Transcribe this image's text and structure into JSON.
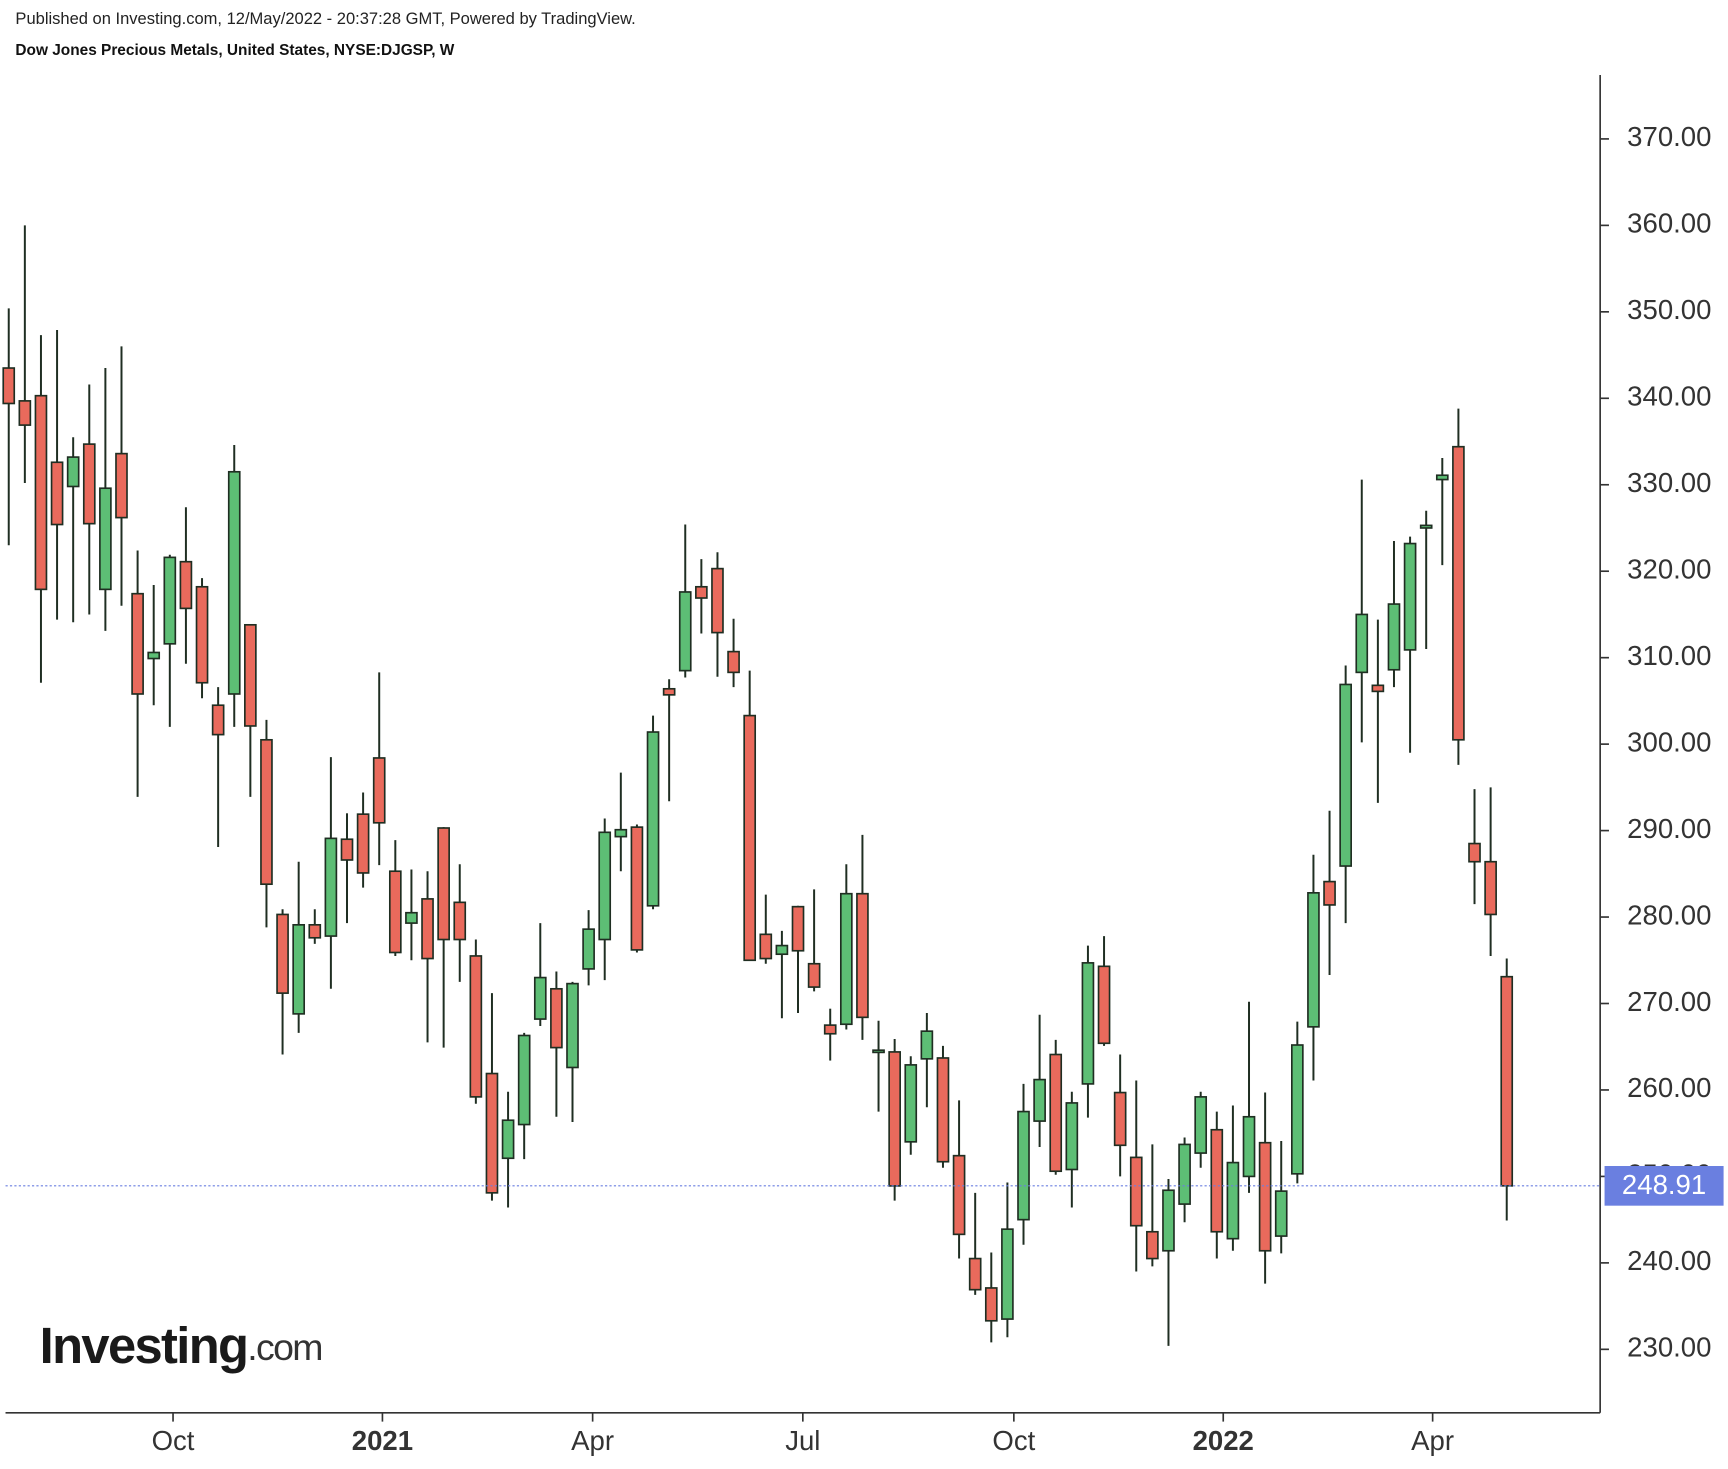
{
  "chart_data": {
    "type": "candlestick",
    "source": "Published on Investing.com, 12/May/2022 - 20:37:28 GMT, Powered by TradingView.",
    "title": "Dow Jones Precious Metals, United States, NYSE:DJGSP, W",
    "watermark": {
      "brand": "Investing",
      "suffix": ".com"
    },
    "up_color": "#5dbe75",
    "down_color": "#e96a5c",
    "outline_color": "#1f2e22",
    "price_line_color": "#6a7fe0",
    "open": [
      343.5,
      339.7,
      340.3,
      332.6,
      329.8,
      334.7,
      317.9,
      333.6,
      317.4,
      309.9,
      311.6,
      321.1,
      318.2,
      304.5,
      305.8,
      313.8,
      300.5,
      280.3,
      268.8,
      279.1,
      277.8,
      289,
      291.9,
      298.4,
      285.3,
      279.3,
      282.1,
      290.3,
      281.7,
      275.5,
      261.9,
      252.1,
      256,
      268.2,
      271.7,
      262.6,
      274,
      277.4,
      289.3,
      290.4,
      281.3,
      306.4,
      308.5,
      318.2,
      320.3,
      310.7,
      303.3,
      278,
      275.7,
      281.2,
      274.6,
      267.5,
      267.6,
      282.7,
      264.5,
      264.4,
      254,
      263.6,
      263.7,
      252.4,
      240.5,
      237.1,
      233.5,
      245,
      256.4,
      264.1,
      250.8,
      260.7,
      274.3,
      259.7,
      252.2,
      243.6,
      241.4,
      246.8,
      252.7,
      255.4,
      242.8,
      250,
      253.9,
      243.1,
      250.3,
      267.3,
      284.1,
      285.9,
      308.3,
      306.8,
      308.6,
      310.9,
      325,
      330.6,
      334.4,
      288.5,
      286.4,
      273.1
    ],
    "high": [
      350.4,
      360,
      347.3,
      347.9,
      335.5,
      341.6,
      343.5,
      346,
      322.4,
      318.4,
      321.9,
      327.4,
      319.2,
      306.6,
      334.6,
      313.9,
      302.8,
      280.9,
      286.4,
      280.9,
      298.5,
      292,
      294.4,
      308.3,
      288.9,
      285.5,
      285.3,
      290.4,
      286.1,
      277.4,
      271.2,
      259.8,
      266.6,
      279.3,
      273.7,
      272.5,
      280.8,
      291.4,
      296.7,
      290.7,
      303.3,
      307.5,
      325.4,
      321.4,
      322.2,
      314.5,
      308.5,
      282.6,
      278.4,
      281.3,
      283.2,
      269.4,
      286.1,
      289.5,
      268,
      265.9,
      263.9,
      268.9,
      265.1,
      258.8,
      248.1,
      241.2,
      249.3,
      260.7,
      268.7,
      265.8,
      259.8,
      276.7,
      277.8,
      264.1,
      261.1,
      253.7,
      249.7,
      254.5,
      259.8,
      257.5,
      258.2,
      270.2,
      259.7,
      254.1,
      267.9,
      287.2,
      292.3,
      309.1,
      330.6,
      314.4,
      323.5,
      324,
      327,
      333.1,
      338.8,
      294.8,
      295,
      275.2
    ],
    "low": [
      323,
      330.2,
      307.1,
      314.4,
      314.1,
      315,
      313.1,
      316,
      293.9,
      304.5,
      302,
      309.3,
      305.3,
      288.1,
      302,
      293.9,
      278.8,
      264.1,
      266.6,
      276.9,
      271.7,
      279.3,
      283.4,
      286,
      275.5,
      275,
      265.5,
      264.9,
      272.5,
      258.4,
      247.2,
      246.4,
      252,
      267.4,
      256.9,
      256.3,
      272.1,
      272.7,
      285.3,
      275.9,
      280.9,
      293.4,
      307.7,
      312.8,
      307.8,
      306.6,
      275,
      274.6,
      268.3,
      268.9,
      271.4,
      263.4,
      267,
      265.8,
      257.5,
      247.2,
      252.5,
      258,
      251,
      240.5,
      236.3,
      230.8,
      231.4,
      242.1,
      253.4,
      250.2,
      246.4,
      256.8,
      265.1,
      250,
      239,
      239.6,
      230.4,
      244.7,
      251,
      240.5,
      241.4,
      248.1,
      237.6,
      241.1,
      249.2,
      261.1,
      273.3,
      279.3,
      300.2,
      293.2,
      306.6,
      299,
      311,
      320.7,
      297.6,
      281.5,
      275.5,
      244.9
    ],
    "close": [
      339.4,
      336.9,
      317.9,
      325.4,
      333.2,
      325.5,
      329.6,
      326.2,
      305.8,
      310.6,
      321.6,
      315.7,
      307.1,
      301.1,
      331.5,
      302.1,
      283.8,
      271.2,
      279.1,
      277.6,
      289.1,
      286.6,
      285.1,
      290.9,
      275.9,
      280.5,
      275.2,
      277.4,
      277.4,
      259.2,
      248.1,
      256.5,
      266.3,
      273,
      264.9,
      272.3,
      278.6,
      289.8,
      290.1,
      276.2,
      301.4,
      305.7,
      317.6,
      316.9,
      312.9,
      308.3,
      275,
      275.2,
      276.7,
      276.1,
      271.9,
      266.5,
      282.7,
      268.4,
      264.6,
      248.9,
      262.9,
      266.8,
      251.7,
      243.3,
      236.9,
      233.3,
      243.9,
      257.5,
      261.2,
      250.6,
      258.5,
      274.7,
      265.4,
      253.6,
      244.3,
      240.5,
      248.4,
      253.7,
      259.2,
      243.6,
      251.6,
      256.9,
      241.4,
      248.3,
      265.2,
      282.8,
      281.4,
      306.9,
      315,
      306.1,
      316.2,
      323.2,
      325.3,
      331.1,
      300.5,
      286.4,
      280.3,
      248.91
    ],
    "xlim": [
      -0.2,
      98.8
    ],
    "xticks": [
      {
        "value": 10.2,
        "label": "Oct"
      },
      {
        "value": 23.2,
        "label": "2021"
      },
      {
        "value": 36.25,
        "label": "Apr"
      },
      {
        "value": 49.3,
        "label": "Jul"
      },
      {
        "value": 62.4,
        "label": "Oct"
      },
      {
        "value": 75.4,
        "label": "2022"
      },
      {
        "value": 88.4,
        "label": "Apr"
      }
    ],
    "ylim": [
      222.66,
      377.4
    ],
    "yticks": [
      {
        "value": 230,
        "label": "230.00"
      },
      {
        "value": 240,
        "label": "240.00"
      },
      {
        "value": 250,
        "label": "250.00"
      },
      {
        "value": 260,
        "label": "260.00"
      },
      {
        "value": 270,
        "label": "270.00"
      },
      {
        "value": 280,
        "label": "280.00"
      },
      {
        "value": 290,
        "label": "290.00"
      },
      {
        "value": 300,
        "label": "300.00"
      },
      {
        "value": 310,
        "label": "310.00"
      },
      {
        "value": 320,
        "label": "320.00"
      },
      {
        "value": 330,
        "label": "330.00"
      },
      {
        "value": 340,
        "label": "340.00"
      },
      {
        "value": 350,
        "label": "350.00"
      },
      {
        "value": 360,
        "label": "360.00"
      },
      {
        "value": 370,
        "label": "370.00"
      }
    ]
  }
}
